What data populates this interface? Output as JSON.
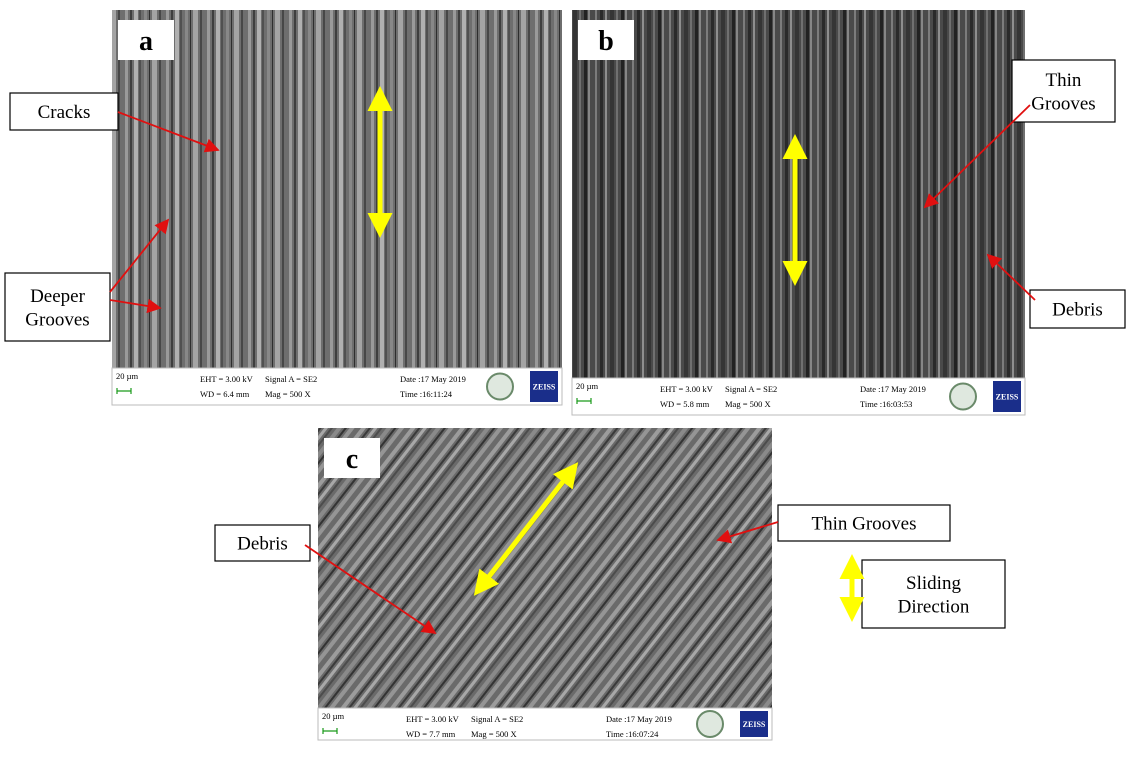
{
  "panels": [
    {
      "label": "a",
      "annotations": [
        {
          "lines": [
            "Cracks"
          ]
        },
        {
          "lines": [
            "Deeper",
            "Grooves"
          ]
        }
      ],
      "info": {
        "scale": "20 µm",
        "eht": "EHT =  3.00 kV",
        "wd": "WD =  6.4 mm",
        "signal": "Signal A = SE2",
        "mag": "Mag =  500 X",
        "date": "Date :17 May 2019",
        "time": "Time :16:11:24",
        "brand": "ZEISS"
      }
    },
    {
      "label": "b",
      "annotations": [
        {
          "lines": [
            "Thin",
            "Grooves"
          ]
        },
        {
          "lines": [
            "Debris"
          ]
        }
      ],
      "info": {
        "scale": "20 µm",
        "eht": "EHT =  3.00 kV",
        "wd": "WD =  5.8 mm",
        "signal": "Signal A = SE2",
        "mag": "Mag =   500 X",
        "date": "Date :17 May 2019",
        "time": "Time :16:03:53",
        "brand": "ZEISS"
      }
    },
    {
      "label": "c",
      "annotations": [
        {
          "lines": [
            "Debris"
          ]
        },
        {
          "lines": [
            "Thin Grooves"
          ]
        }
      ],
      "info": {
        "scale": "20 µm",
        "eht": "EHT =  3.00 kV",
        "wd": "WD =  7.7 mm",
        "signal": "Signal A = SE2",
        "mag": "Mag =   500 X",
        "date": "Date :17 May 2019",
        "time": "Time :16:07:24",
        "brand": "ZEISS"
      }
    }
  ],
  "legend": {
    "lines": [
      "Sliding",
      "Direction"
    ]
  }
}
